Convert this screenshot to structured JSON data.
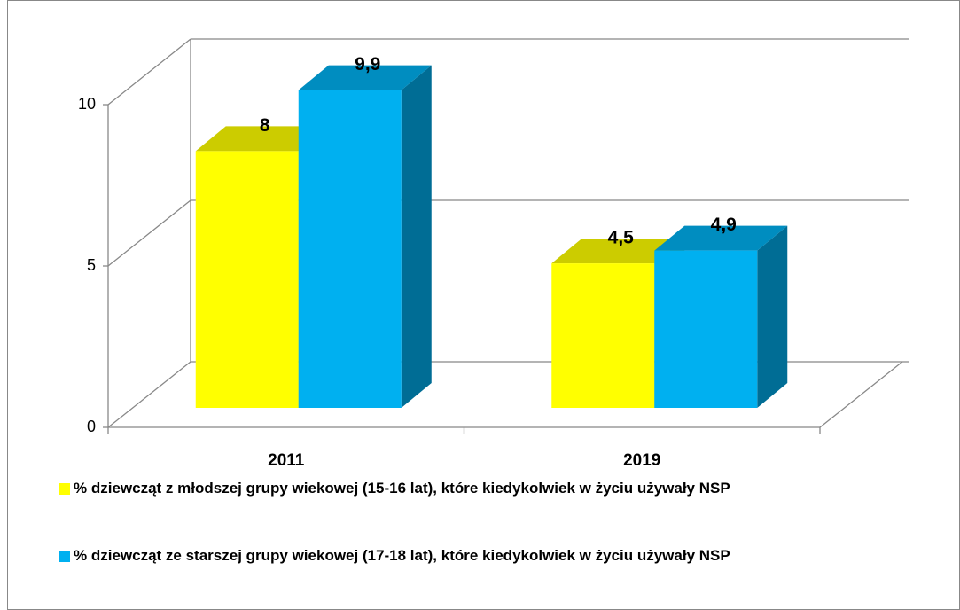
{
  "chart_data": {
    "type": "bar3d",
    "categories": [
      "2011",
      "2019"
    ],
    "series": [
      {
        "name": "% dziewcząt z młodszej grupy wiekowej (15-16 lat), które  kiedykolwiek w życiu używały NSP",
        "color": "#ffff00",
        "values": [
          8,
          4.5
        ],
        "value_labels": [
          "8",
          "4,5"
        ]
      },
      {
        "name": "% dziewcząt ze starszej grupy wiekowej (17-18 lat), które  kiedykolwiek w życiu używały NSP",
        "color": "#00b0f0",
        "values": [
          9.9,
          4.9
        ],
        "value_labels": [
          "9,9",
          "4,9"
        ]
      }
    ],
    "ylim": [
      0,
      10
    ],
    "yticks": [
      0,
      5,
      10
    ],
    "grid": true,
    "legend": "bottom"
  }
}
